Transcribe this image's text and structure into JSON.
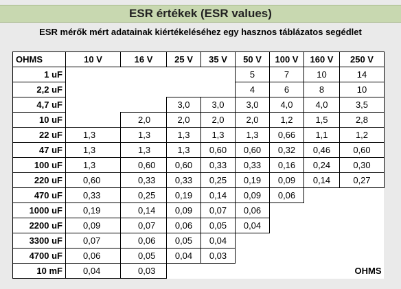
{
  "title": "ESR értékek (ESR values)",
  "subtitle": "ESR mérők mért adatainak kiértékeléséhez egy hasznos táblázatos segédlet",
  "table": {
    "corner_label": "OHMS",
    "columns": [
      "10 V",
      "16 V",
      "25 V",
      "35 V",
      "50 V",
      "100 V",
      "160 V",
      "250 V"
    ],
    "rows": [
      {
        "label": "1 uF",
        "cells": [
          "",
          "",
          "",
          "",
          "5",
          "7",
          "10",
          "14"
        ]
      },
      {
        "label": "2,2 uF",
        "cells": [
          "",
          "",
          "",
          "",
          "4",
          "6",
          "8",
          "10"
        ]
      },
      {
        "label": "4,7 uF",
        "cells": [
          "",
          "",
          "3,0",
          "3,0",
          "3,0",
          "4,0",
          "4,0",
          "3,5"
        ]
      },
      {
        "label": "10 uF",
        "cells": [
          "",
          "2,0",
          "2,0",
          "2,0",
          "2,0",
          "1,2",
          "1,5",
          "2,8"
        ]
      },
      {
        "label": "22 uF",
        "cells": [
          "1,3",
          "1,3",
          "1,3",
          "1,3",
          "1,3",
          "0,66",
          "1,1",
          "1,2"
        ]
      },
      {
        "label": "47 uF",
        "cells": [
          "1,3",
          "1,3",
          "1,3",
          "0,60",
          "0,60",
          "0,32",
          "0,46",
          "0,60"
        ]
      },
      {
        "label": "100 uF",
        "cells": [
          "1,3",
          "0,60",
          "0,60",
          "0,33",
          "0,33",
          "0,16",
          "0,24",
          "0,30"
        ]
      },
      {
        "label": "220 uF",
        "cells": [
          "0,60",
          "0,33",
          "0,33",
          "0,25",
          "0,19",
          "0,09",
          "0,14",
          "0,27"
        ]
      },
      {
        "label": "470 uF",
        "cells": [
          "0,33",
          "0,25",
          "0,19",
          "0,14",
          "0,09",
          "0,06",
          "",
          ""
        ]
      },
      {
        "label": "1000 uF",
        "cells": [
          "0,19",
          "0,14",
          "0,09",
          "0,07",
          "0,06",
          "",
          "",
          ""
        ]
      },
      {
        "label": "2200 uF",
        "cells": [
          "0,09",
          "0,07",
          "0,06",
          "0,05",
          "0,04",
          "",
          "",
          ""
        ]
      },
      {
        "label": "3300 uF",
        "cells": [
          "0,07",
          "0,06",
          "0,05",
          "0,04",
          "",
          "",
          "",
          ""
        ]
      },
      {
        "label": "4700 uF",
        "cells": [
          "0,06",
          "0,05",
          "0,04",
          "0,03",
          "",
          "",
          "",
          ""
        ]
      },
      {
        "label": "10 mF",
        "cells": [
          "0,04",
          "0,03",
          "",
          "",
          "",
          "",
          "",
          ""
        ]
      }
    ],
    "footer_label": "OHMS"
  }
}
